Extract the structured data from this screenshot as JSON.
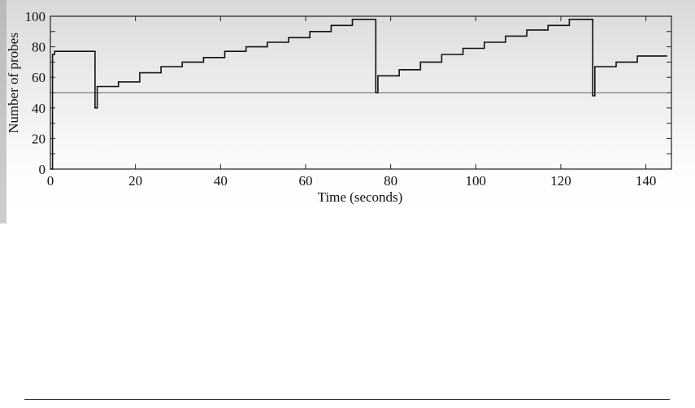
{
  "chart_data": {
    "type": "line",
    "title": "",
    "xlabel": "Time (seconds)",
    "ylabel": "Number of probes",
    "xlim": [
      0,
      146
    ],
    "ylim": [
      0,
      100
    ],
    "x_ticks": [
      0,
      20,
      40,
      60,
      80,
      100,
      120,
      140
    ],
    "y_ticks": [
      0,
      10,
      20,
      30,
      40,
      50,
      60,
      70,
      80,
      90,
      100
    ],
    "y_tick_labels": [
      0,
      20,
      40,
      60,
      80,
      100
    ],
    "grid": false,
    "legend": "none",
    "reference_line": {
      "y": 50
    },
    "series": [
      {
        "x": [
          0,
          0.5,
          0.5,
          1,
          1,
          6,
          6,
          10.5,
          10.5,
          11,
          11,
          16,
          16,
          21,
          21,
          26,
          26,
          31,
          31,
          36,
          36,
          41,
          41,
          46,
          46,
          51,
          51,
          56,
          56,
          61,
          61,
          66,
          66,
          71,
          71,
          76.5,
          76.5,
          77,
          77,
          82,
          82,
          87,
          87,
          92,
          92,
          97,
          97,
          102,
          102,
          107,
          107,
          112,
          112,
          117,
          117,
          122,
          122,
          127.5,
          127.5,
          128,
          128,
          133,
          133,
          138,
          138,
          145
        ],
        "y": [
          0,
          0,
          75,
          75,
          77,
          77,
          77,
          77,
          40,
          40,
          54,
          54,
          57,
          57,
          63,
          63,
          67,
          67,
          70,
          70,
          73,
          73,
          77,
          77,
          80,
          80,
          83,
          83,
          86,
          86,
          90,
          90,
          94,
          94,
          98,
          98,
          50,
          50,
          61,
          61,
          65,
          65,
          70,
          70,
          75,
          75,
          79,
          79,
          83,
          83,
          87,
          87,
          91,
          91,
          94,
          94,
          98,
          98,
          48,
          48,
          67,
          67,
          70,
          70,
          74,
          74
        ]
      }
    ]
  }
}
